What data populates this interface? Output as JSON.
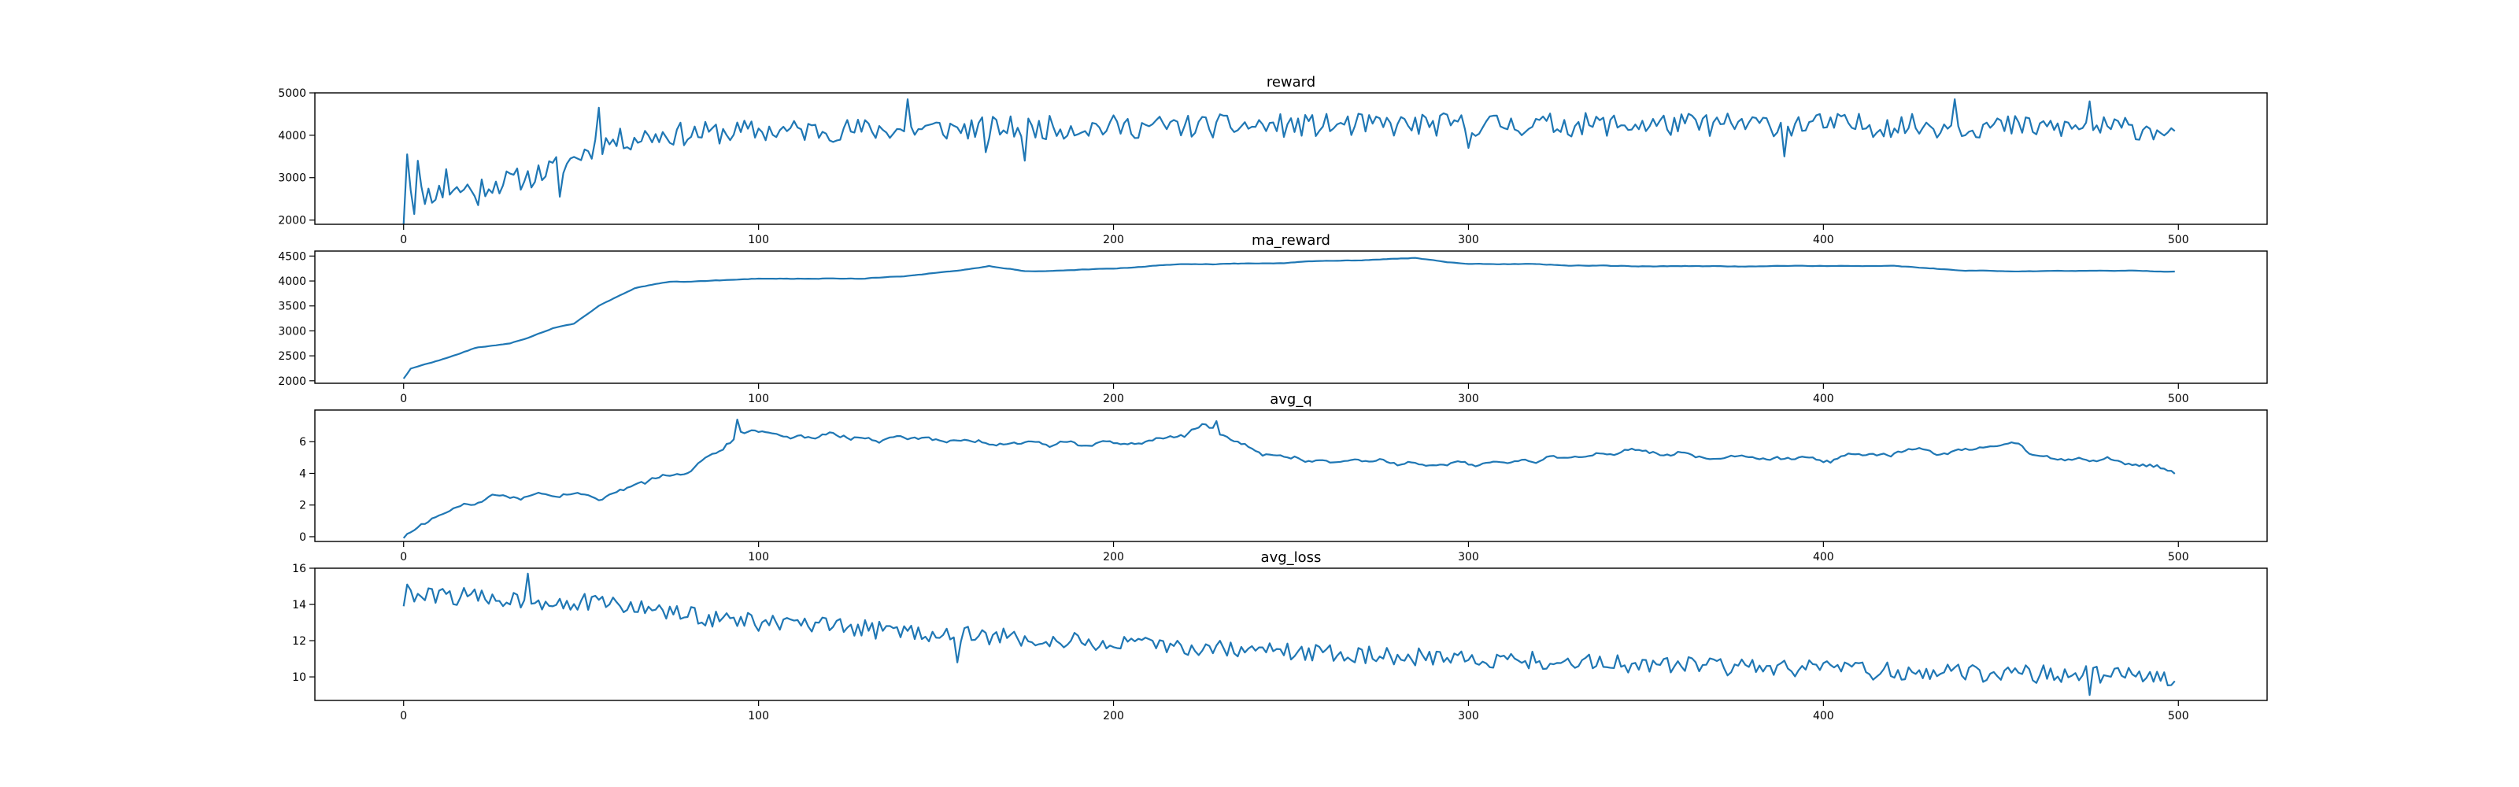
{
  "chart_data": [
    {
      "type": "line",
      "title": "reward",
      "xlim": [
        -25,
        525
      ],
      "ylim": [
        1900,
        5000
      ],
      "xticks": [
        0,
        100,
        200,
        300,
        400,
        500
      ],
      "yticks": [
        2000,
        3000,
        4000,
        5000
      ],
      "line_color": "#1f77b4",
      "generator": {
        "n": 500,
        "seed": 11,
        "keypoints": [
          [
            0,
            2050
          ],
          [
            5,
            2600
          ],
          [
            15,
            2700
          ],
          [
            25,
            2850
          ],
          [
            35,
            3000
          ],
          [
            45,
            3300
          ],
          [
            55,
            3800
          ],
          [
            70,
            4000
          ],
          [
            100,
            4100
          ],
          [
            200,
            4200
          ],
          [
            300,
            4250
          ],
          [
            400,
            4250
          ],
          [
            499,
            4150
          ]
        ],
        "noise": 280,
        "smooth": 0,
        "spikes": [
          [
            1,
            3550
          ],
          [
            2,
            2700
          ],
          [
            4,
            3400
          ],
          [
            12,
            3200
          ],
          [
            21,
            2350
          ],
          [
            44,
            2550
          ],
          [
            55,
            4650
          ],
          [
            142,
            4850
          ],
          [
            164,
            3600
          ],
          [
            175,
            3400
          ],
          [
            300,
            3700
          ],
          [
            389,
            3500
          ],
          [
            437,
            4850
          ],
          [
            475,
            4800
          ],
          [
            499,
            4100
          ]
        ]
      }
    },
    {
      "type": "line",
      "title": "ma_reward",
      "xlim": [
        -25,
        525
      ],
      "ylim": [
        1950,
        4600
      ],
      "xticks": [
        0,
        100,
        200,
        300,
        400,
        500
      ],
      "yticks": [
        2000,
        2500,
        3000,
        3500,
        4000,
        4500
      ],
      "line_color": "#1f77b4",
      "generator": {
        "n": 500,
        "seed": 22,
        "keypoints": [
          [
            0,
            2050
          ],
          [
            2,
            2250
          ],
          [
            10,
            2400
          ],
          [
            20,
            2650
          ],
          [
            30,
            2750
          ],
          [
            35,
            2850
          ],
          [
            42,
            3050
          ],
          [
            48,
            3150
          ],
          [
            55,
            3500
          ],
          [
            65,
            3850
          ],
          [
            75,
            4000
          ],
          [
            90,
            4000
          ],
          [
            100,
            4050
          ],
          [
            130,
            4050
          ],
          [
            150,
            4150
          ],
          [
            165,
            4300
          ],
          [
            175,
            4200
          ],
          [
            200,
            4250
          ],
          [
            220,
            4350
          ],
          [
            240,
            4350
          ],
          [
            260,
            4400
          ],
          [
            285,
            4450
          ],
          [
            300,
            4350
          ],
          [
            340,
            4300
          ],
          [
            380,
            4300
          ],
          [
            420,
            4300
          ],
          [
            440,
            4200
          ],
          [
            470,
            4200
          ],
          [
            499,
            4200
          ]
        ],
        "noise": 18,
        "smooth": 4,
        "spikes": []
      }
    },
    {
      "type": "line",
      "title": "avg_q",
      "xlim": [
        -25,
        525
      ],
      "ylim": [
        -0.3,
        8.0
      ],
      "xticks": [
        0,
        100,
        200,
        300,
        400,
        500
      ],
      "yticks": [
        0,
        2,
        4,
        6
      ],
      "line_color": "#1f77b4",
      "generator": {
        "n": 500,
        "seed": 33,
        "keypoints": [
          [
            0,
            0.1
          ],
          [
            10,
            1.3
          ],
          [
            20,
            2.1
          ],
          [
            30,
            2.6
          ],
          [
            45,
            2.9
          ],
          [
            50,
            2.8
          ],
          [
            55,
            2.6
          ],
          [
            65,
            3.3
          ],
          [
            80,
            4.3
          ],
          [
            90,
            5.5
          ],
          [
            95,
            6.6
          ],
          [
            100,
            6.5
          ],
          [
            150,
            6.1
          ],
          [
            200,
            5.8
          ],
          [
            210,
            6.0
          ],
          [
            220,
            6.4
          ],
          [
            226,
            7.2
          ],
          [
            235,
            5.8
          ],
          [
            250,
            5.0
          ],
          [
            280,
            4.8
          ],
          [
            300,
            4.5
          ],
          [
            330,
            5.0
          ],
          [
            345,
            5.4
          ],
          [
            370,
            5.0
          ],
          [
            400,
            4.8
          ],
          [
            420,
            5.3
          ],
          [
            440,
            5.3
          ],
          [
            455,
            5.8
          ],
          [
            460,
            5.0
          ],
          [
            480,
            4.8
          ],
          [
            499,
            4.2
          ]
        ],
        "noise": 0.28,
        "smooth": 2,
        "spikes": [
          [
            94,
            7.4
          ],
          [
            229,
            7.3
          ]
        ]
      }
    },
    {
      "type": "line",
      "title": "avg_loss",
      "xlim": [
        -25,
        525
      ],
      "ylim": [
        8.7,
        16.0
      ],
      "xticks": [
        0,
        100,
        200,
        300,
        400,
        500
      ],
      "yticks": [
        10,
        12,
        14,
        16
      ],
      "line_color": "#1f77b4",
      "generator": {
        "n": 500,
        "seed": 44,
        "keypoints": [
          [
            0,
            14.3
          ],
          [
            10,
            14.5
          ],
          [
            30,
            14.3
          ],
          [
            60,
            14.0
          ],
          [
            80,
            13.4
          ],
          [
            100,
            13.0
          ],
          [
            150,
            12.4
          ],
          [
            200,
            11.8
          ],
          [
            250,
            11.4
          ],
          [
            300,
            11.0
          ],
          [
            350,
            10.7
          ],
          [
            400,
            10.4
          ],
          [
            450,
            10.2
          ],
          [
            499,
            10.0
          ]
        ],
        "noise": 0.5,
        "smooth": 0,
        "spikes": [
          [
            0,
            13.9
          ],
          [
            1,
            15.1
          ],
          [
            35,
            15.7
          ],
          [
            156,
            10.8
          ],
          [
            475,
            9.0
          ]
        ]
      }
    }
  ]
}
